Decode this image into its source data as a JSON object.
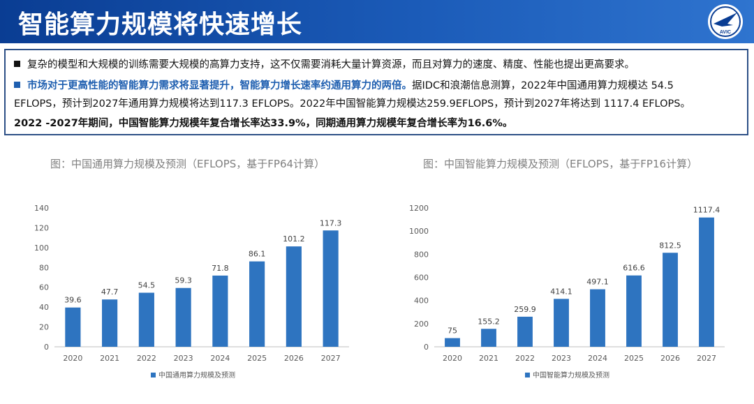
{
  "header": {
    "title": "智能算力规模将快速增长",
    "logo_text": "AVIC"
  },
  "info": {
    "line1": "复杂的模型和大规模的训练需要大规模的高算力支持，这不仅需要消耗大量计算资源，而且对算力的速度、精度、性能也提出更高要求。",
    "line2_highlight": "市场对于更高性能的智能算力需求将显著提升，智能算力增长速率约通用算力的两倍。",
    "line2_rest": "据IDC和浪潮信息测算，2022年中国通用算力规模达 54.5",
    "line3": "EFLOPS，预计到2027年通用算力规模将达到117.3 EFLOPS。2022年中国智能算力规模达259.9EFLOPS，预计到2027年将达到 1117.4 EFLOPS。",
    "line4": "2022 -2027年期间，中国智能算力规模年复合增长率达33.9%，同期通用算力规模年复合增长率为16.6%。"
  },
  "colors": {
    "bar": "#2e74c0",
    "header": "#0a3d93",
    "highlight": "#1f5fb0"
  },
  "chart_data": [
    {
      "type": "bar",
      "title": "图：中国通用算力规模及预测（EFLOPS，基于FP64计算）",
      "categories": [
        "2020",
        "2021",
        "2022",
        "2023",
        "2024",
        "2025",
        "2026",
        "2027"
      ],
      "series": [
        {
          "name": "中国通用算力规模及预测",
          "values": [
            39.6,
            47.7,
            54.5,
            59.3,
            71.8,
            86.1,
            101.2,
            117.3
          ]
        }
      ],
      "value_labels": [
        "39.6",
        "47.7",
        "54.5",
        "59.3",
        "71.8",
        "86.1",
        "101.2",
        "117.3"
      ],
      "yticks": [
        0,
        20,
        40,
        60,
        80,
        100,
        120,
        140
      ],
      "ylim": [
        0,
        140
      ],
      "legend": "bottom"
    },
    {
      "type": "bar",
      "title": "图：中国智能算力规模及预测（EFLOPS，基于FP16计算）",
      "categories": [
        "2020",
        "2021",
        "2022",
        "2023",
        "2024",
        "2025",
        "2026",
        "2027"
      ],
      "series": [
        {
          "name": "中国智能算力规模及预测",
          "values": [
            75,
            155.2,
            259.9,
            414.1,
            497.1,
            616.6,
            812.5,
            1117.4
          ]
        }
      ],
      "value_labels": [
        "75",
        "155.2",
        "259.9",
        "414.1",
        "497.1",
        "616.6",
        "812.5",
        "1117.4"
      ],
      "yticks": [
        0,
        200,
        400,
        600,
        800,
        1000,
        1200
      ],
      "ylim": [
        0,
        1200
      ],
      "legend": "bottom"
    }
  ]
}
